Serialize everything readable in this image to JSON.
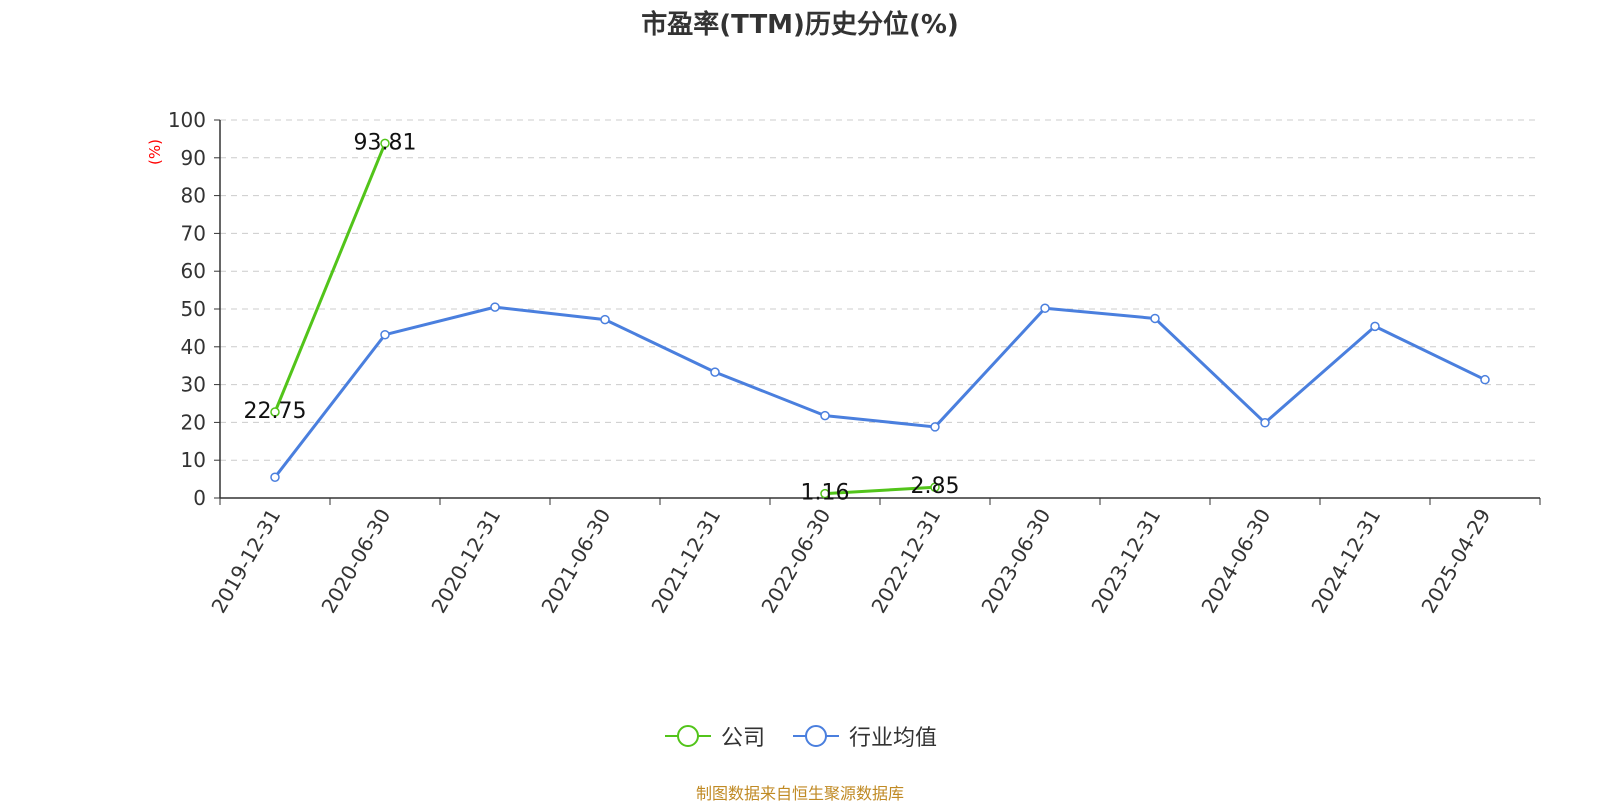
{
  "title": "市盈率(TTM)历史分位(%)",
  "source_note": "制图数据来自恒生聚源数据库",
  "colors": {
    "company": "#52c41a",
    "industry": "#4a7fde",
    "grid": "#cccccc",
    "axis": "#333333",
    "ylabel": "#ff0000"
  },
  "chart_data": {
    "type": "line",
    "title": "市盈率(TTM)历史分位(%)",
    "ylabel": "(%)",
    "ylim": [
      0,
      100
    ],
    "yticks": [
      0,
      10,
      20,
      30,
      40,
      50,
      60,
      70,
      80,
      90,
      100
    ],
    "categories": [
      "2019-12-31",
      "2020-06-30",
      "2020-12-31",
      "2021-06-30",
      "2021-12-31",
      "2022-06-30",
      "2022-12-31",
      "2023-06-30",
      "2023-12-31",
      "2024-06-30",
      "2024-12-31",
      "2025-04-29"
    ],
    "grid": true,
    "legend_position": "bottom-center",
    "series": [
      {
        "name": "公司",
        "color": "#52c41a",
        "values": [
          22.75,
          93.81,
          null,
          null,
          null,
          1.16,
          2.85,
          null,
          null,
          null,
          null,
          null
        ],
        "labels": [
          "22.75",
          "93.81",
          null,
          null,
          null,
          "1.16",
          "2.85",
          null,
          null,
          null,
          null,
          null
        ]
      },
      {
        "name": "行业均值",
        "color": "#4a7fde",
        "values": [
          5.5,
          43.2,
          50.5,
          47.2,
          33.3,
          21.8,
          18.8,
          50.2,
          47.5,
          19.9,
          45.4,
          31.3
        ]
      }
    ]
  }
}
